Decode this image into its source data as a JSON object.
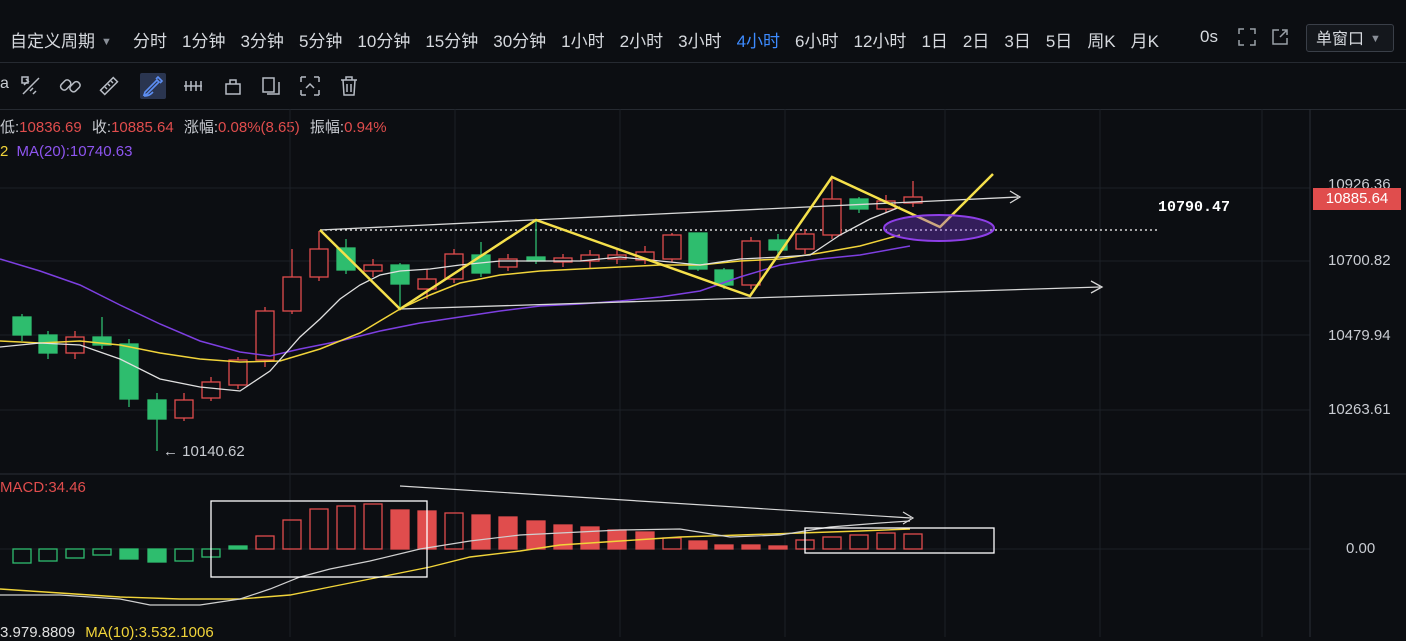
{
  "top_bar": {
    "custom_period_label": "自定义周期",
    "periods": [
      "分时",
      "1分钟",
      "3分钟",
      "5分钟",
      "10分钟",
      "15分钟",
      "30分钟",
      "1小时",
      "2小时",
      "3小时",
      "4小时",
      "6小时",
      "12小时",
      "1日",
      "2日",
      "3日",
      "5日",
      "周K",
      "月K"
    ],
    "active_period": "4小时",
    "countdown": "0s",
    "window_mode": "单窗口"
  },
  "toolbar": {
    "partial_left_text": "a",
    "tools": [
      "ruler-pen-icon",
      "link-icon",
      "pencil-ruler-icon",
      "brush-icon",
      "pattern-icon",
      "lock-icon",
      "copy-icon",
      "magnet-icon",
      "trash-icon"
    ],
    "active_tool": "brush-icon"
  },
  "ohlc": {
    "low_label": "低:",
    "low_value": "10836.69",
    "close_label": "收:",
    "close_value": "10885.64",
    "change_label": "涨幅:",
    "change_value": "0.08%(8.65)",
    "amplitude_label": "振幅:",
    "amplitude_value": "0.94%"
  },
  "ma_line": {
    "prefix": "2",
    "ma20_label": "MA(20):",
    "ma20_value": "10740.63"
  },
  "price_axis": {
    "ticks": [
      "10926.36",
      "10700.82",
      "10479.94",
      "10263.61"
    ],
    "current_price": "10885.64"
  },
  "annotations": {
    "level_value": "10790.47",
    "low_marker": "← 10140.62"
  },
  "macd": {
    "label": "MACD:",
    "value": "34.46",
    "zero_label": "0.00",
    "bottom_text_a": "3.979.8809",
    "bottom_text_b": "MA(10):3.532.1006"
  },
  "colors": {
    "up": "#e04d4d",
    "down": "#2ebd6e",
    "accent": "#3d8bff",
    "ma_fast": "#e8e8e8",
    "ma_slow": "#f1d43a",
    "ma20": "#7d3fe0",
    "pattern": "#f5e04b",
    "highlight": "#8e3fe8"
  },
  "chart_data": {
    "type": "candlestick",
    "price_ticks": [
      10926.36,
      10700.82,
      10479.94,
      10263.61
    ],
    "last_close": 10885.64,
    "level": 10790.47,
    "low_mark": 10140.62,
    "ma20": 10740.63,
    "macd": 34.46
  }
}
